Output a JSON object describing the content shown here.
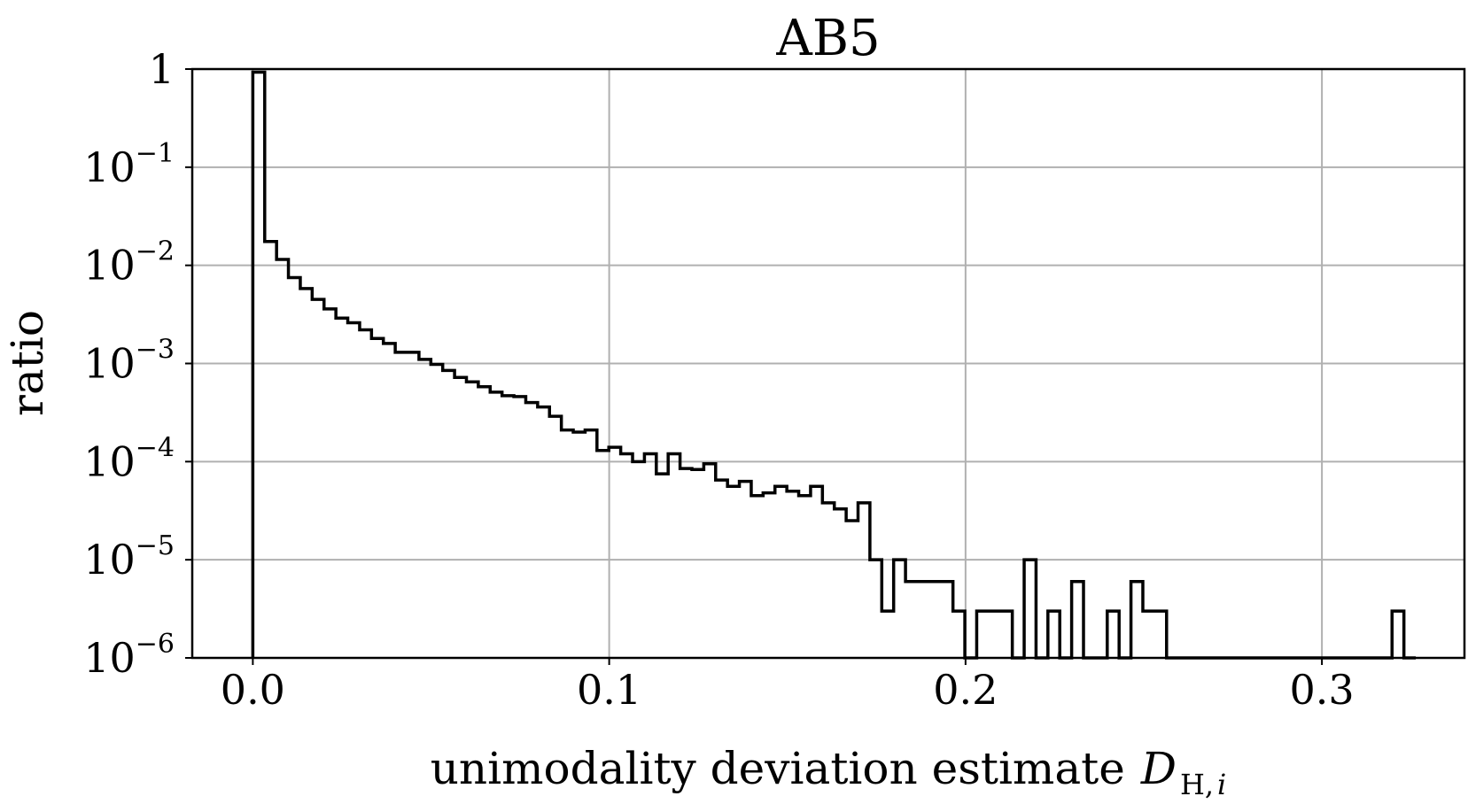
{
  "chart_data": {
    "type": "histogram-step",
    "title": "AB5",
    "xlabel": "unimodality deviation estimate",
    "xlabel_math": {
      "symbol": "D",
      "subscript_roman": "H,",
      "subscript_italic": "i"
    },
    "ylabel": "ratio",
    "yscale": "log",
    "xlim": [
      -0.017,
      0.34
    ],
    "ylim": [
      1e-06,
      1
    ],
    "grid": true,
    "x_ticks": [
      {
        "value": 0.0,
        "label": "0.0"
      },
      {
        "value": 0.1,
        "label": "0.1"
      },
      {
        "value": 0.2,
        "label": "0.2"
      },
      {
        "value": 0.3,
        "label": "0.3"
      }
    ],
    "y_ticks": [
      {
        "value": 1,
        "base": "1",
        "exp": ""
      },
      {
        "value": 0.1,
        "base": "10",
        "exp": "−1"
      },
      {
        "value": 0.01,
        "base": "10",
        "exp": "−2"
      },
      {
        "value": 0.001,
        "base": "10",
        "exp": "−3"
      },
      {
        "value": 0.0001,
        "base": "10",
        "exp": "−4"
      },
      {
        "value": 1e-05,
        "base": "10",
        "exp": "−5"
      },
      {
        "value": 1e-06,
        "base": "10",
        "exp": "−6"
      }
    ],
    "bin_start": 0.0,
    "bin_width": 0.00333,
    "values": [
      0.93,
      0.0175,
      0.0115,
      0.0075,
      0.0058,
      0.0045,
      0.0036,
      0.0029,
      0.0026,
      0.0022,
      0.0018,
      0.0016,
      0.0013,
      0.0013,
      0.0011,
      0.00098,
      0.00085,
      0.00072,
      0.00065,
      0.00058,
      0.00051,
      0.00047,
      0.00046,
      0.0004,
      0.00036,
      0.00029,
      0.00021,
      0.0002,
      0.00021,
      0.00013,
      0.00014,
      0.00012,
      0.0001,
      0.00012,
      7.5e-05,
      0.00012,
      8.5e-05,
      8.3e-05,
      9.5e-05,
      6.5e-05,
      5.6e-05,
      6.3e-05,
      4.5e-05,
      4.8e-05,
      5.6e-05,
      5e-05,
      4.5e-05,
      5.6e-05,
      3.8e-05,
      3.3e-05,
      2.5e-05,
      3.8e-05,
      1e-05,
      3e-06,
      1e-05,
      6e-06,
      6e-06,
      6e-06,
      6e-06,
      3e-06,
      1e-06,
      3e-06,
      3e-06,
      3e-06,
      1e-06,
      1e-05,
      1e-06,
      3e-06,
      1e-06,
      6e-06,
      1e-06,
      1e-06,
      3e-06,
      1e-06,
      6e-06,
      3e-06,
      3e-06,
      1e-06,
      1e-06,
      1e-06,
      1e-06,
      1e-06,
      1e-06,
      1e-06,
      1e-06,
      1e-06,
      1e-06,
      1e-06,
      1e-06,
      1e-06,
      1e-06,
      1e-06,
      1e-06,
      1e-06,
      1e-06,
      1e-06,
      3e-06,
      1e-06
    ]
  }
}
